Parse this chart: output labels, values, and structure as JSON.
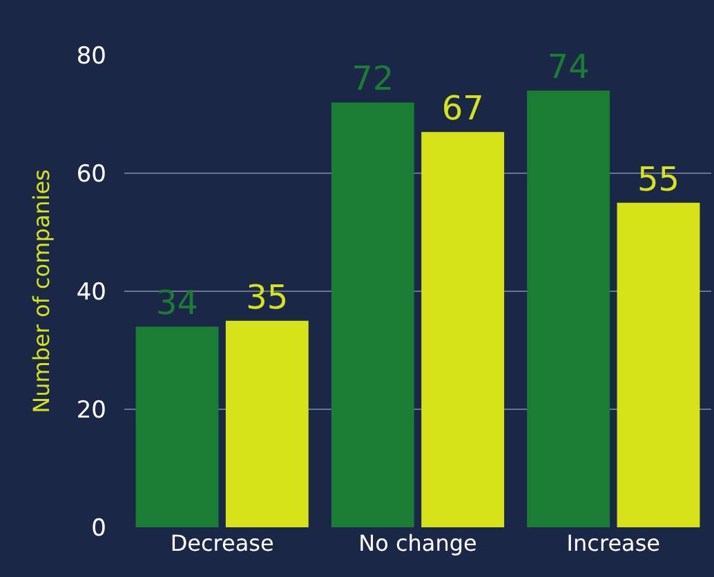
{
  "chart_data": {
    "type": "bar",
    "ylabel": "Number of companies",
    "categories": [
      "Decrease",
      "No change",
      "Increase"
    ],
    "series": [
      {
        "color": "#1b7d34",
        "values": [
          34,
          72,
          74
        ]
      },
      {
        "color": "#d6e318",
        "values": [
          35,
          67,
          55
        ]
      }
    ],
    "ylim": [
      0,
      80
    ],
    "yticks": [
      0,
      20,
      40,
      60,
      80
    ],
    "grid": "y",
    "data_labels": true
  }
}
